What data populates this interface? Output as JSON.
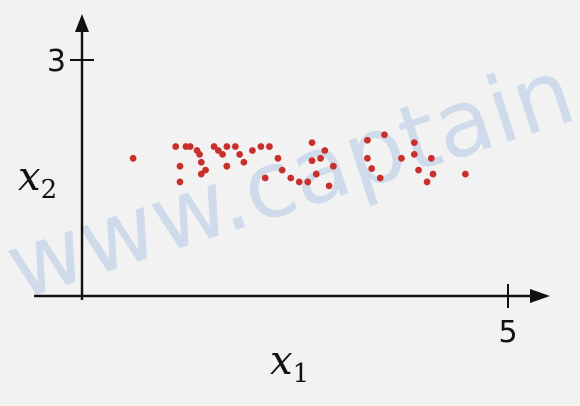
{
  "chart_data": {
    "type": "scatter",
    "title": "",
    "xlabel": "x",
    "xlabel_sub": "1",
    "ylabel": "x",
    "ylabel_sub": "2",
    "xlim": [
      0,
      5
    ],
    "ylim": [
      0,
      3
    ],
    "x_ticks": [
      5
    ],
    "y_ticks": [
      3
    ],
    "grid": false,
    "marker_color": "#c9302c",
    "points": [
      [
        0.6,
        1.75
      ],
      [
        1.1,
        1.9
      ],
      [
        1.22,
        1.9
      ],
      [
        1.27,
        1.9
      ],
      [
        1.15,
        1.65
      ],
      [
        1.15,
        1.45
      ],
      [
        1.35,
        1.85
      ],
      [
        1.38,
        1.8
      ],
      [
        1.4,
        1.7
      ],
      [
        1.45,
        1.6
      ],
      [
        1.4,
        1.55
      ],
      [
        1.55,
        1.9
      ],
      [
        1.6,
        1.85
      ],
      [
        1.65,
        1.8
      ],
      [
        1.7,
        1.9
      ],
      [
        1.8,
        1.9
      ],
      [
        1.85,
        1.8
      ],
      [
        1.7,
        1.65
      ],
      [
        1.9,
        1.7
      ],
      [
        2.0,
        1.85
      ],
      [
        2.1,
        1.9
      ],
      [
        2.2,
        1.9
      ],
      [
        2.3,
        1.75
      ],
      [
        2.35,
        1.6
      ],
      [
        2.45,
        1.5
      ],
      [
        2.55,
        1.45
      ],
      [
        2.7,
        1.95
      ],
      [
        2.7,
        1.72
      ],
      [
        2.75,
        1.55
      ],
      [
        2.65,
        1.45
      ],
      [
        2.8,
        1.75
      ],
      [
        2.95,
        1.65
      ],
      [
        2.85,
        1.85
      ],
      [
        3.35,
        1.98
      ],
      [
        3.35,
        1.75
      ],
      [
        3.4,
        1.62
      ],
      [
        3.5,
        1.5
      ],
      [
        3.75,
        1.75
      ],
      [
        3.9,
        1.8
      ],
      [
        3.9,
        1.95
      ],
      [
        3.95,
        1.6
      ],
      [
        4.1,
        1.75
      ],
      [
        4.12,
        1.55
      ],
      [
        4.05,
        1.45
      ],
      [
        4.5,
        1.55
      ],
      [
        2.15,
        1.5
      ],
      [
        3.55,
        2.05
      ],
      [
        2.9,
        1.4
      ]
    ]
  },
  "watermark": "www.captain"
}
